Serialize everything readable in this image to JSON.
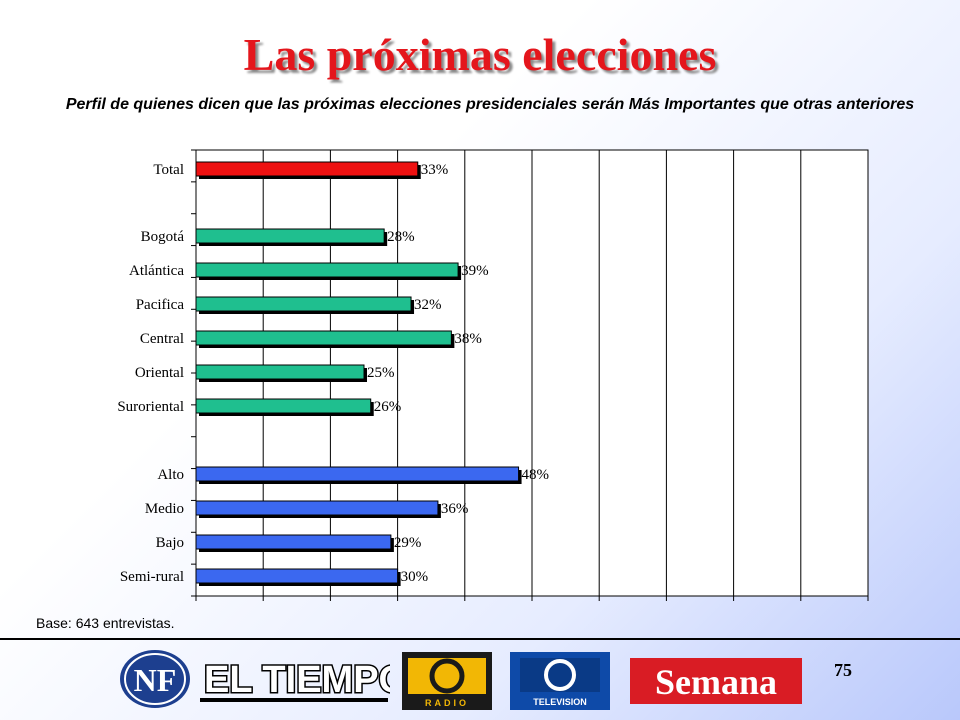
{
  "header": {
    "title": "Las próximas elecciones",
    "subtitle": "Perfil de quienes dicen que las próximas elecciones presidenciales serán Más Importantes que otras anteriores"
  },
  "chart_data": {
    "type": "bar",
    "orientation": "horizontal",
    "categories": [
      "Total",
      "Bogotá",
      "Atlántica",
      "Pacifica",
      "Central",
      "Oriental",
      "Suroriental",
      "Alto",
      "Medio",
      "Bajo",
      "Semi-rural"
    ],
    "values": [
      33,
      28,
      39,
      32,
      38,
      25,
      26,
      48,
      36,
      29,
      30
    ],
    "labels": [
      "33%",
      "28%",
      "39%",
      "32%",
      "38%",
      "25%",
      "26%",
      "48%",
      "36%",
      "29%",
      "30%"
    ],
    "groups": [
      0,
      1,
      1,
      1,
      1,
      1,
      1,
      2,
      2,
      2,
      2
    ],
    "group_colors": [
      "#ee1111",
      "#1fbf8f",
      "#3b68f0"
    ],
    "xlim": [
      0,
      100
    ],
    "grid": true
  },
  "footer": {
    "base_note": "Base: 643 entrevistas.",
    "page_number": "75",
    "logos": {
      "nf": "NF",
      "eltiempo": "EL TIEMPO",
      "rcn_radio": "RADIO",
      "rcn_tv": "TELEVISION",
      "semana": "Semana"
    }
  }
}
